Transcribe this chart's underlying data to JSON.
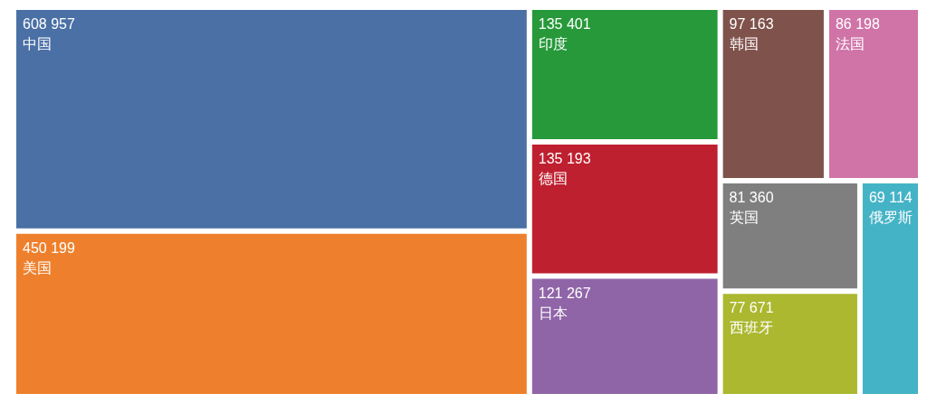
{
  "chart_data": {
    "type": "other",
    "categories": [
      "中国",
      "美国",
      "印度",
      "德国",
      "日本",
      "韩国",
      "法国",
      "英国",
      "西班牙",
      "俄罗斯"
    ],
    "values": [
      608957,
      450199,
      135401,
      135193,
      121267,
      97163,
      86198,
      81360,
      77671,
      69114
    ],
    "value_labels": [
      "608 957",
      "450 199",
      "135 401",
      "135 193",
      "121 267",
      "97 163",
      "86 198",
      "81 360",
      "77 671",
      "69 114"
    ],
    "colors": [
      "#4a70a5",
      "#ee802d",
      "#27993a",
      "#bf2030",
      "#8f65a8",
      "#7f524b",
      "#d074a8",
      "#7f7f7f",
      "#abb830",
      "#45b3c6"
    ]
  }
}
